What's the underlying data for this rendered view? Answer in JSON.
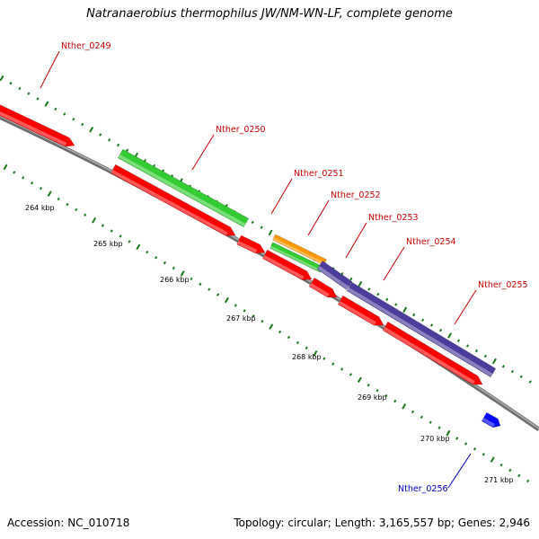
{
  "title": "Natranaerobius thermophilus JW/NM-WN-LF, complete genome",
  "footer": {
    "accession": "Accession: NC_010718",
    "topology": "Topology: circular; Length: 3,165,557 bp; Genes: 2,946"
  },
  "colors": {
    "cds": "#ff0000",
    "green": "#33cc33",
    "orange": "#ff9900",
    "purple": "#4b3d9b",
    "blue": "#0000ff",
    "backbone": "#8c8c8c",
    "ticks": "#1a7a1a",
    "label_red": "#cc0000",
    "label_blue": "#0000cc"
  },
  "scale_labels": [
    "264 kbp",
    "265 kbp",
    "266 kbp",
    "267 kbp",
    "268 kbp",
    "269 kbp",
    "270 kbp",
    "271 kbp"
  ],
  "genes": [
    {
      "label": "Nther_0249",
      "color": "label_red"
    },
    {
      "label": "Nther_0250",
      "color": "label_red"
    },
    {
      "label": "Nther_0251",
      "color": "label_red"
    },
    {
      "label": "Nther_0252",
      "color": "label_red"
    },
    {
      "label": "Nther_0253",
      "color": "label_red"
    },
    {
      "label": "Nther_0254",
      "color": "label_red"
    },
    {
      "label": "Nther_0255",
      "color": "label_red"
    },
    {
      "label": "Nther_0256",
      "color": "label_blue"
    }
  ]
}
